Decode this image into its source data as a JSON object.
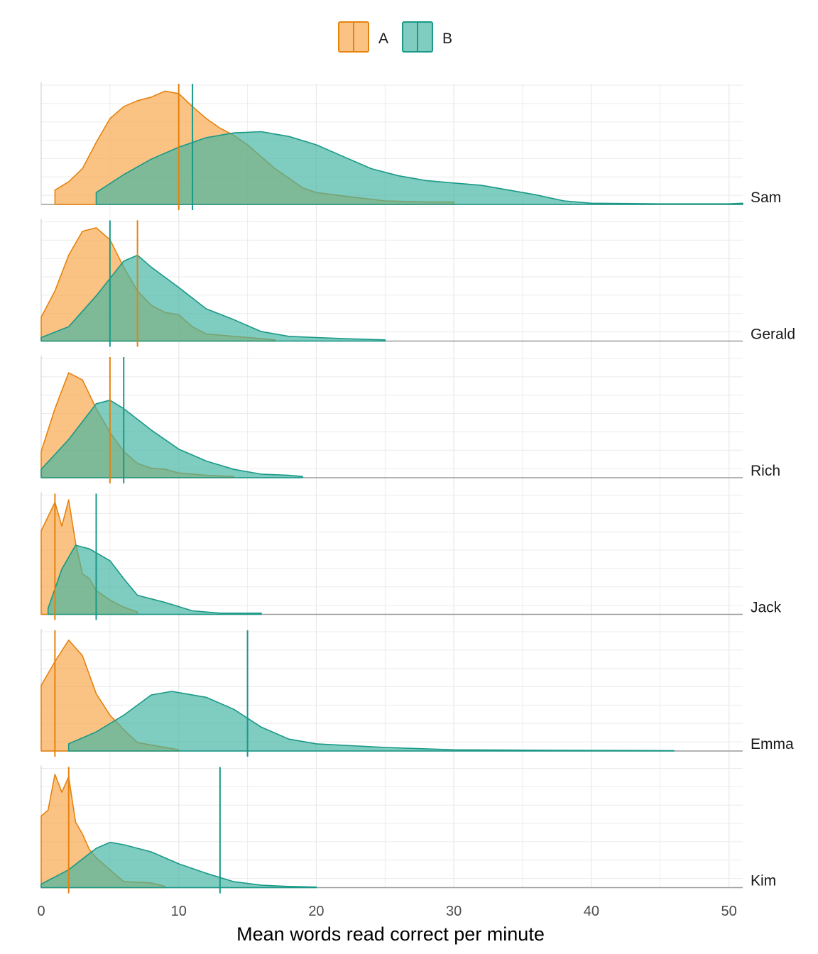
{
  "chart_data": {
    "type": "area",
    "subtype": "faceted density ridges",
    "xlabel": "Mean words read correct per minute",
    "ylabel": "",
    "xlim": [
      0,
      51
    ],
    "xticks": [
      0,
      10,
      20,
      30,
      40,
      50
    ],
    "grid": true,
    "legend": {
      "position": "top",
      "entries": [
        "A",
        "B"
      ]
    },
    "colors": {
      "A": {
        "stroke": "#E6820E",
        "fill": "#F9A648"
      },
      "B": {
        "stroke": "#1A9988",
        "fill": "#43B4A2"
      }
    },
    "facets": [
      {
        "name": "Sam",
        "A": {
          "mean": 10,
          "density": [
            [
              1,
              0.12
            ],
            [
              2,
              0.19
            ],
            [
              3,
              0.3
            ],
            [
              4,
              0.52
            ],
            [
              5,
              0.72
            ],
            [
              6,
              0.82
            ],
            [
              7,
              0.87
            ],
            [
              8,
              0.9
            ],
            [
              9,
              0.95
            ],
            [
              10,
              0.93
            ],
            [
              11,
              0.82
            ],
            [
              12,
              0.72
            ],
            [
              13,
              0.64
            ],
            [
              14,
              0.58
            ],
            [
              15,
              0.5
            ],
            [
              16,
              0.4
            ],
            [
              17,
              0.3
            ],
            [
              18,
              0.22
            ],
            [
              19,
              0.14
            ],
            [
              20,
              0.1
            ],
            [
              22,
              0.07
            ],
            [
              25,
              0.03
            ],
            [
              28,
              0.02
            ],
            [
              30,
              0.02
            ]
          ]
        },
        "B": {
          "mean": 11,
          "density": [
            [
              4,
              0.1
            ],
            [
              6,
              0.25
            ],
            [
              8,
              0.38
            ],
            [
              10,
              0.48
            ],
            [
              12,
              0.56
            ],
            [
              14,
              0.6
            ],
            [
              16,
              0.61
            ],
            [
              18,
              0.57
            ],
            [
              20,
              0.5
            ],
            [
              22,
              0.4
            ],
            [
              24,
              0.3
            ],
            [
              26,
              0.24
            ],
            [
              28,
              0.2
            ],
            [
              30,
              0.18
            ],
            [
              32,
              0.16
            ],
            [
              34,
              0.12
            ],
            [
              36,
              0.08
            ],
            [
              38,
              0.03
            ],
            [
              40,
              0.01
            ],
            [
              45,
              0.005
            ],
            [
              50,
              0.005
            ],
            [
              51,
              0.01
            ]
          ]
        }
      },
      {
        "name": "Gerald",
        "A": {
          "mean": 7,
          "density": [
            [
              0,
              0.2
            ],
            [
              1,
              0.42
            ],
            [
              2,
              0.72
            ],
            [
              3,
              0.92
            ],
            [
              4,
              0.95
            ],
            [
              5,
              0.85
            ],
            [
              6,
              0.62
            ],
            [
              7,
              0.42
            ],
            [
              8,
              0.3
            ],
            [
              9,
              0.24
            ],
            [
              10,
              0.22
            ],
            [
              11,
              0.12
            ],
            [
              12,
              0.06
            ],
            [
              14,
              0.04
            ],
            [
              16,
              0.02
            ],
            [
              17,
              0.01
            ]
          ]
        },
        "B": {
          "mean": 5,
          "density": [
            [
              0,
              0.03
            ],
            [
              2,
              0.12
            ],
            [
              4,
              0.38
            ],
            [
              6,
              0.67
            ],
            [
              7,
              0.72
            ],
            [
              8,
              0.62
            ],
            [
              10,
              0.45
            ],
            [
              12,
              0.27
            ],
            [
              14,
              0.18
            ],
            [
              16,
              0.08
            ],
            [
              18,
              0.04
            ],
            [
              20,
              0.03
            ],
            [
              22,
              0.02
            ],
            [
              25,
              0.01
            ]
          ]
        }
      },
      {
        "name": "Rich",
        "A": {
          "mean": 5,
          "density": [
            [
              0,
              0.22
            ],
            [
              1,
              0.58
            ],
            [
              2,
              0.88
            ],
            [
              3,
              0.82
            ],
            [
              4,
              0.58
            ],
            [
              5,
              0.38
            ],
            [
              6,
              0.22
            ],
            [
              7,
              0.12
            ],
            [
              8,
              0.08
            ],
            [
              9,
              0.07
            ],
            [
              10,
              0.04
            ],
            [
              12,
              0.02
            ],
            [
              14,
              0.01
            ]
          ]
        },
        "B": {
          "mean": 6,
          "density": [
            [
              0,
              0.07
            ],
            [
              2,
              0.32
            ],
            [
              4,
              0.62
            ],
            [
              5,
              0.65
            ],
            [
              6,
              0.58
            ],
            [
              8,
              0.4
            ],
            [
              10,
              0.24
            ],
            [
              12,
              0.14
            ],
            [
              14,
              0.07
            ],
            [
              16,
              0.03
            ],
            [
              18,
              0.02
            ],
            [
              19,
              0.01
            ]
          ]
        }
      },
      {
        "name": "Jack",
        "A": {
          "mean": 1,
          "density": [
            [
              0,
              0.7
            ],
            [
              1,
              0.94
            ],
            [
              1.5,
              0.74
            ],
            [
              2,
              0.96
            ],
            [
              2.5,
              0.6
            ],
            [
              3,
              0.34
            ],
            [
              3.5,
              0.3
            ],
            [
              4,
              0.2
            ],
            [
              5,
              0.12
            ],
            [
              6,
              0.06
            ],
            [
              7,
              0.02
            ]
          ]
        },
        "B": {
          "mean": 4,
          "density": [
            [
              0.5,
              0.05
            ],
            [
              1.5,
              0.38
            ],
            [
              2.5,
              0.58
            ],
            [
              3.5,
              0.55
            ],
            [
              5,
              0.45
            ],
            [
              6,
              0.3
            ],
            [
              7,
              0.16
            ],
            [
              9,
              0.1
            ],
            [
              11,
              0.03
            ],
            [
              13,
              0.01
            ],
            [
              16,
              0.01
            ]
          ]
        }
      },
      {
        "name": "Emma",
        "A": {
          "mean": 1,
          "density": [
            [
              0,
              0.55
            ],
            [
              1,
              0.75
            ],
            [
              2,
              0.93
            ],
            [
              3,
              0.8
            ],
            [
              4,
              0.48
            ],
            [
              5,
              0.3
            ],
            [
              6,
              0.18
            ],
            [
              7,
              0.07
            ],
            [
              8,
              0.05
            ],
            [
              10,
              0.01
            ]
          ]
        },
        "B": {
          "mean": 15,
          "density": [
            [
              2,
              0.06
            ],
            [
              4,
              0.16
            ],
            [
              6,
              0.3
            ],
            [
              8,
              0.47
            ],
            [
              9.5,
              0.5
            ],
            [
              12,
              0.45
            ],
            [
              14,
              0.35
            ],
            [
              16,
              0.2
            ],
            [
              18,
              0.1
            ],
            [
              20,
              0.06
            ],
            [
              25,
              0.03
            ],
            [
              30,
              0.01
            ],
            [
              40,
              0.005
            ],
            [
              46,
              0.003
            ]
          ]
        }
      },
      {
        "name": "Kim",
        "A": {
          "mean": 2,
          "density": [
            [
              0,
              0.6
            ],
            [
              0.5,
              0.65
            ],
            [
              1,
              0.95
            ],
            [
              1.5,
              0.8
            ],
            [
              2,
              0.93
            ],
            [
              2.5,
              0.55
            ],
            [
              3,
              0.45
            ],
            [
              3.5,
              0.32
            ],
            [
              4,
              0.25
            ],
            [
              5,
              0.15
            ],
            [
              6,
              0.05
            ],
            [
              8,
              0.04
            ],
            [
              9,
              0.01
            ]
          ]
        },
        "B": {
          "mean": 13,
          "density": [
            [
              0,
              0.03
            ],
            [
              2,
              0.15
            ],
            [
              4,
              0.33
            ],
            [
              5,
              0.38
            ],
            [
              6,
              0.36
            ],
            [
              8,
              0.3
            ],
            [
              10,
              0.2
            ],
            [
              12,
              0.12
            ],
            [
              14,
              0.05
            ],
            [
              16,
              0.02
            ],
            [
              18,
              0.01
            ],
            [
              20,
              0.005
            ]
          ]
        }
      }
    ]
  }
}
